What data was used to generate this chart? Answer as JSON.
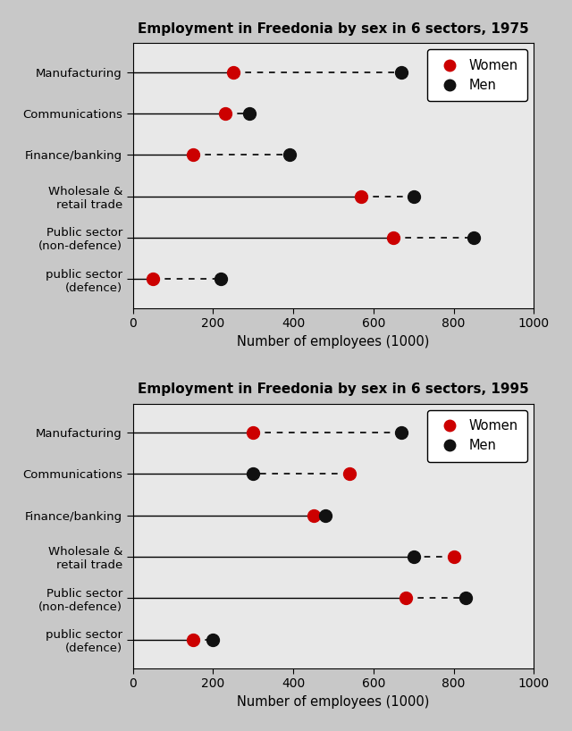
{
  "chart1": {
    "title": "Employment in Freedonia by sex in 6 sectors, 1975",
    "categories": [
      "Manufacturing",
      "Communications",
      "Finance/banking",
      "Wholesale &\nretail trade",
      "Public sector\n(non-defence)",
      "public sector\n(defence)"
    ],
    "women": [
      250,
      230,
      150,
      570,
      650,
      50
    ],
    "men": [
      670,
      290,
      390,
      700,
      850,
      220
    ]
  },
  "chart2": {
    "title": "Employment in Freedonia by sex in 6 sectors, 1995",
    "categories": [
      "Manufacturing",
      "Communications",
      "Finance/banking",
      "Wholesale &\nretail trade",
      "Public sector\n(non-defence)",
      "public sector\n(defence)"
    ],
    "women": [
      300,
      540,
      450,
      800,
      680,
      150
    ],
    "men": [
      670,
      300,
      480,
      700,
      830,
      200
    ]
  },
  "xlabel": "Number of employees (1000)",
  "xlim": [
    0,
    1000
  ],
  "xticks": [
    0,
    200,
    400,
    600,
    800,
    1000
  ],
  "women_color": "#cc0000",
  "men_color": "#111111",
  "marker_size": 10,
  "fig_bg": "#c8c8c8",
  "ax_bg": "#e8e8e8"
}
